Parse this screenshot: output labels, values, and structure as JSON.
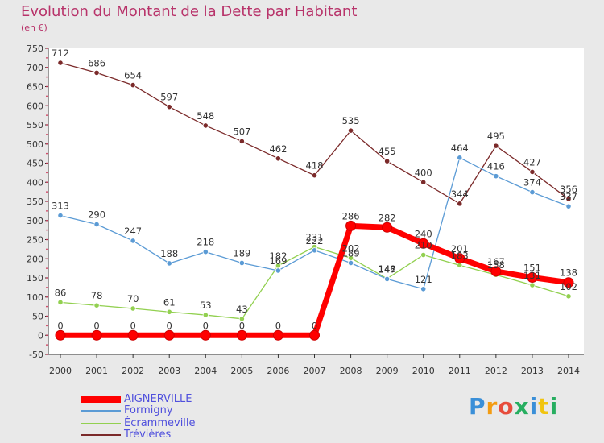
{
  "page": {
    "title": "Evolution du Montant de la Dette par Habitant",
    "unit": "(en €)"
  },
  "logo": {
    "text": "Proxiti",
    "letters": [
      {
        "ch": "P",
        "color": "#3a8fd8"
      },
      {
        "ch": "r",
        "color": "#f39c12"
      },
      {
        "ch": "o",
        "color": "#e74c3c"
      },
      {
        "ch": "x",
        "color": "#27ae60"
      },
      {
        "ch": "i",
        "color": "#3a8fd8"
      },
      {
        "ch": "t",
        "color": "#f1c40f"
      },
      {
        "ch": "i",
        "color": "#27ae60"
      }
    ]
  },
  "chart_data": {
    "type": "line",
    "title": "Evolution du Montant de la Dette par Habitant",
    "ylabel": "(en €)",
    "xlabel": "",
    "ylim": [
      -50,
      750
    ],
    "yticks": [
      -50,
      0,
      50,
      100,
      150,
      200,
      250,
      300,
      350,
      400,
      450,
      500,
      550,
      600,
      650,
      700,
      750
    ],
    "grid": false,
    "legend_position": "bottom-left",
    "x": [
      "2000",
      "2001",
      "2002",
      "2003",
      "2004",
      "2005",
      "2006",
      "2007",
      "2008",
      "2009",
      "2010",
      "2011",
      "2012",
      "2013",
      "2014"
    ],
    "series": [
      {
        "name": "AIGNERVILLE",
        "color": "#ff0000",
        "values": [
          0,
          0,
          0,
          0,
          0,
          0,
          0,
          0,
          286,
          282,
          240,
          201,
          167,
          151,
          138
        ],
        "labels": [
          true,
          true,
          true,
          true,
          true,
          true,
          true,
          true,
          true,
          true,
          true,
          true,
          true,
          true,
          true
        ]
      },
      {
        "name": "Formigny",
        "color": "#5b9bd5",
        "values": [
          313,
          290,
          247,
          188,
          218,
          189,
          169,
          222,
          189,
          147,
          121,
          464,
          416,
          374,
          337
        ],
        "labels": [
          true,
          true,
          true,
          true,
          true,
          true,
          true,
          true,
          true,
          true,
          true,
          true,
          true,
          true,
          true
        ]
      },
      {
        "name": "Écrammeville",
        "color": "#92d050",
        "values": [
          86,
          78,
          70,
          61,
          53,
          43,
          182,
          231,
          202,
          148,
          210,
          183,
          158,
          131,
          102
        ],
        "labels": [
          true,
          true,
          true,
          true,
          true,
          true,
          true,
          true,
          true,
          true,
          true,
          true,
          true,
          true,
          true
        ]
      },
      {
        "name": "Trévières",
        "color": "#7b2a2a",
        "values": [
          712,
          686,
          654,
          597,
          548,
          507,
          462,
          418,
          535,
          455,
          400,
          344,
          495,
          427,
          356
        ],
        "labels": [
          true,
          true,
          true,
          true,
          true,
          true,
          true,
          true,
          true,
          true,
          true,
          true,
          true,
          true,
          true
        ]
      }
    ],
    "value_labels": [
      {
        "text": "712",
        "x": "2000",
        "y": 712
      },
      {
        "text": "686",
        "x": "2001",
        "y": 686
      },
      {
        "text": "654",
        "x": "2002",
        "y": 654
      },
      {
        "text": "597",
        "x": "2003",
        "y": 597
      },
      {
        "text": "548",
        "x": "2004",
        "y": 548
      },
      {
        "text": "507",
        "x": "2005",
        "y": 507
      },
      {
        "text": "462",
        "x": "2006",
        "y": 462
      },
      {
        "text": "418",
        "x": "2007",
        "y": 418
      },
      {
        "text": "535",
        "x": "2008",
        "y": 535
      },
      {
        "text": "455",
        "x": "2009",
        "y": 455
      },
      {
        "text": "400",
        "x": "2010",
        "y": 400
      },
      {
        "text": "344",
        "x": "2011",
        "y": 344
      },
      {
        "text": "495",
        "x": "2012",
        "y": 495
      },
      {
        "text": "427",
        "x": "2013",
        "y": 427
      },
      {
        "text": "356",
        "x": "2014",
        "y": 356
      },
      {
        "text": "313",
        "x": "2000",
        "y": 313
      },
      {
        "text": "290",
        "x": "2001",
        "y": 290
      },
      {
        "text": "247",
        "x": "2002",
        "y": 247
      },
      {
        "text": "188",
        "x": "2003",
        "y": 188
      },
      {
        "text": "218",
        "x": "2004",
        "y": 218
      },
      {
        "text": "189",
        "x": "2005",
        "y": 189
      },
      {
        "text": "169",
        "x": "2006",
        "y": 169
      },
      {
        "text": "222",
        "x": "2007",
        "y": 222
      },
      {
        "text": "189",
        "x": "2008",
        "y": 189
      },
      {
        "text": "147",
        "x": "2009",
        "y": 147
      },
      {
        "text": "121",
        "x": "2010",
        "y": 121
      },
      {
        "text": "464",
        "x": "2011",
        "y": 464
      },
      {
        "text": "416",
        "x": "2012",
        "y": 416
      },
      {
        "text": "374",
        "x": "2013",
        "y": 374
      },
      {
        "text": "337",
        "x": "2014",
        "y": 337
      },
      {
        "text": "86",
        "x": "2000",
        "y": 86
      },
      {
        "text": "78",
        "x": "2001",
        "y": 78
      },
      {
        "text": "70",
        "x": "2002",
        "y": 70
      },
      {
        "text": "61",
        "x": "2003",
        "y": 61
      },
      {
        "text": "53",
        "x": "2004",
        "y": 53
      },
      {
        "text": "43",
        "x": "2005",
        "y": 43
      },
      {
        "text": "182",
        "x": "2006",
        "y": 182
      },
      {
        "text": "231",
        "x": "2007",
        "y": 231
      },
      {
        "text": "202",
        "x": "2008",
        "y": 202
      },
      {
        "text": "148",
        "x": "2009",
        "y": 148
      },
      {
        "text": "210",
        "x": "2010",
        "y": 210
      },
      {
        "text": "183",
        "x": "2011",
        "y": 183
      },
      {
        "text": "158",
        "x": "2012",
        "y": 158
      },
      {
        "text": "131",
        "x": "2013",
        "y": 131
      },
      {
        "text": "102",
        "x": "2014",
        "y": 102
      },
      {
        "text": "0",
        "x": "2000",
        "y": 0
      },
      {
        "text": "0",
        "x": "2001",
        "y": 0
      },
      {
        "text": "0",
        "x": "2002",
        "y": 0
      },
      {
        "text": "0",
        "x": "2003",
        "y": 0
      },
      {
        "text": "0",
        "x": "2004",
        "y": 0
      },
      {
        "text": "0",
        "x": "2005",
        "y": 0
      },
      {
        "text": "0",
        "x": "2006",
        "y": 0
      },
      {
        "text": "0",
        "x": "2007",
        "y": 0
      },
      {
        "text": "286",
        "x": "2008",
        "y": 286
      },
      {
        "text": "282",
        "x": "2009",
        "y": 282
      },
      {
        "text": "240",
        "x": "2010",
        "y": 240
      },
      {
        "text": "201",
        "x": "2011",
        "y": 201
      },
      {
        "text": "167",
        "x": "2012",
        "y": 167
      },
      {
        "text": "151",
        "x": "2013",
        "y": 151
      },
      {
        "text": "138",
        "x": "2014",
        "y": 138
      }
    ]
  }
}
